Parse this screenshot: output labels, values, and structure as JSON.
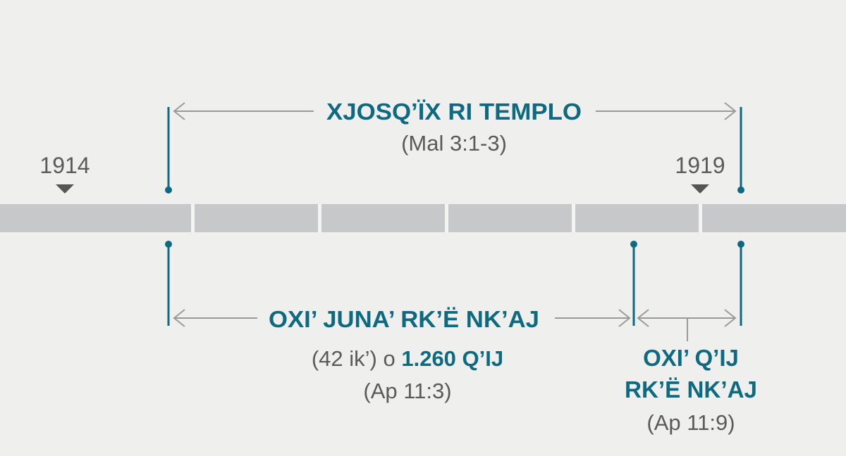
{
  "years": {
    "start": "1914",
    "end": "1919"
  },
  "top_period": {
    "title": "XJOSQ’ÏX RI TEMPLO",
    "reference": "(Mal 3:1-3)"
  },
  "left_period": {
    "title": "OXI’ JUNA’ RK’Ë NK’AJ",
    "line2_prefix": "(42 ik’) o ",
    "line2_bold": "1.260 Q’IJ",
    "reference": "(Ap 11:3)"
  },
  "right_period": {
    "title_line1": "OXI’ Q’IJ",
    "title_line2": "RK’Ë NK’AJ",
    "reference": "(Ap 11:9)"
  },
  "colors": {
    "accent": "#0e6a80",
    "timeline": "#c6c8ca",
    "background": "#efefed",
    "text": "#5a5a5a"
  }
}
